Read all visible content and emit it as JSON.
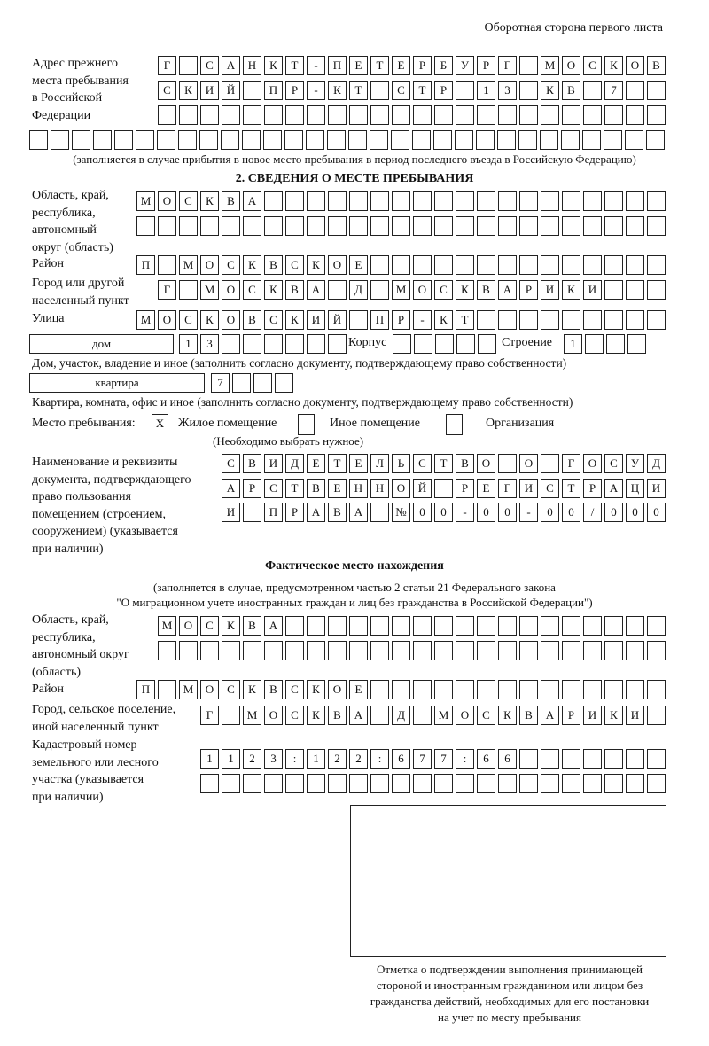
{
  "header": "Оборотная сторона первого листа",
  "prev_address": {
    "label": [
      "Адрес прежнего",
      "места пребывания",
      "в Российской",
      "Федерации"
    ],
    "rows": [
      "Г САНКТ-ПЕТЕРБУРГ МОСКОВ",
      "СКИЙ ПР-КТ СТР 13 КВ 7  ",
      "",
      ""
    ],
    "note": "(заполняется в случае прибытия в новое место пребывания в период последнего въезда в Российскую Федерацию)"
  },
  "section2": {
    "title": "2. СВЕДЕНИЯ О МЕСТЕ ПРЕБЫВАНИЯ",
    "region_label": [
      "Область, край,",
      "республика,",
      "автономный",
      "округ (область)"
    ],
    "region_rows": [
      "МОСКВА",
      ""
    ],
    "district_label": "Район",
    "district": "П МОСКВСКОЕ",
    "city_label": [
      "Город или другой",
      "населенный пункт"
    ],
    "city": "Г МОСКВА Д МОСКВАРИКИ",
    "street_label": "Улица",
    "street": "МОСКОВСКИЙ ПР-КТ",
    "house_type": "дом",
    "house": "13",
    "korpus_label": "Корпус",
    "korpus": "",
    "building_label": "Строение",
    "building": "1",
    "house_note": "Дом, участок, владение и иное (заполнить согласно документу, подтверждающему право собственности)",
    "flat_type": "квартира",
    "flat": "7",
    "flat_note": "Квартира, комната, офис и иное (заполнить согласно документу, подтверждающему право собственности)",
    "place_label": "Место пребывания:",
    "place_options": [
      {
        "label": "Жилое помещение",
        "mark": "X"
      },
      {
        "label": "Иное помещение",
        "mark": ""
      },
      {
        "label": "Организация",
        "mark": ""
      }
    ],
    "place_note": "(Необходимо выбрать нужное)",
    "doc_label": [
      "Наименование и реквизиты",
      "документа, подтверждающего",
      "право пользования",
      "помещением (строением,",
      "сооружением) (указывается",
      "при наличии)"
    ],
    "doc_rows": [
      "СВИДЕТЕЛЬСТВО О ГОСУД",
      "АРСТВЕННОЙ РЕГИСТРАЦИ",
      "И ПРАВА №00-00-00/000"
    ]
  },
  "actual": {
    "title": "Фактическое место нахождения",
    "note": [
      "(заполняется в случае, предусмотренном частью 2 статьи 21 Федерального закона",
      "\"О миграционном учете иностранных граждан и лиц без гражданства в Российской Федерации\")"
    ],
    "region_label": [
      "Область, край,",
      "республика,",
      "автономный округ",
      "(область)"
    ],
    "region_rows": [
      "МОСКВА",
      ""
    ],
    "district_label": "Район",
    "district": "П МОСКВСКОЕ",
    "city_label": [
      "Город, сельское поселение,",
      "иной населенный пункт"
    ],
    "city": "Г МОСКВА Д МОСКВАРИКИ",
    "cadastre_label": [
      "Кадастровый номер",
      "земельного или лесного",
      "участка (указывается",
      "при наличии)"
    ],
    "cadastre_rows": [
      "1123:122:677:66",
      ""
    ]
  },
  "stamp_caption": [
    "Отметка о подтверждении выполнения принимающей",
    "стороной и иностранным гражданином или лицом без",
    "гражданства действий, необходимых для его постановки",
    "на учет по месту пребывания"
  ]
}
